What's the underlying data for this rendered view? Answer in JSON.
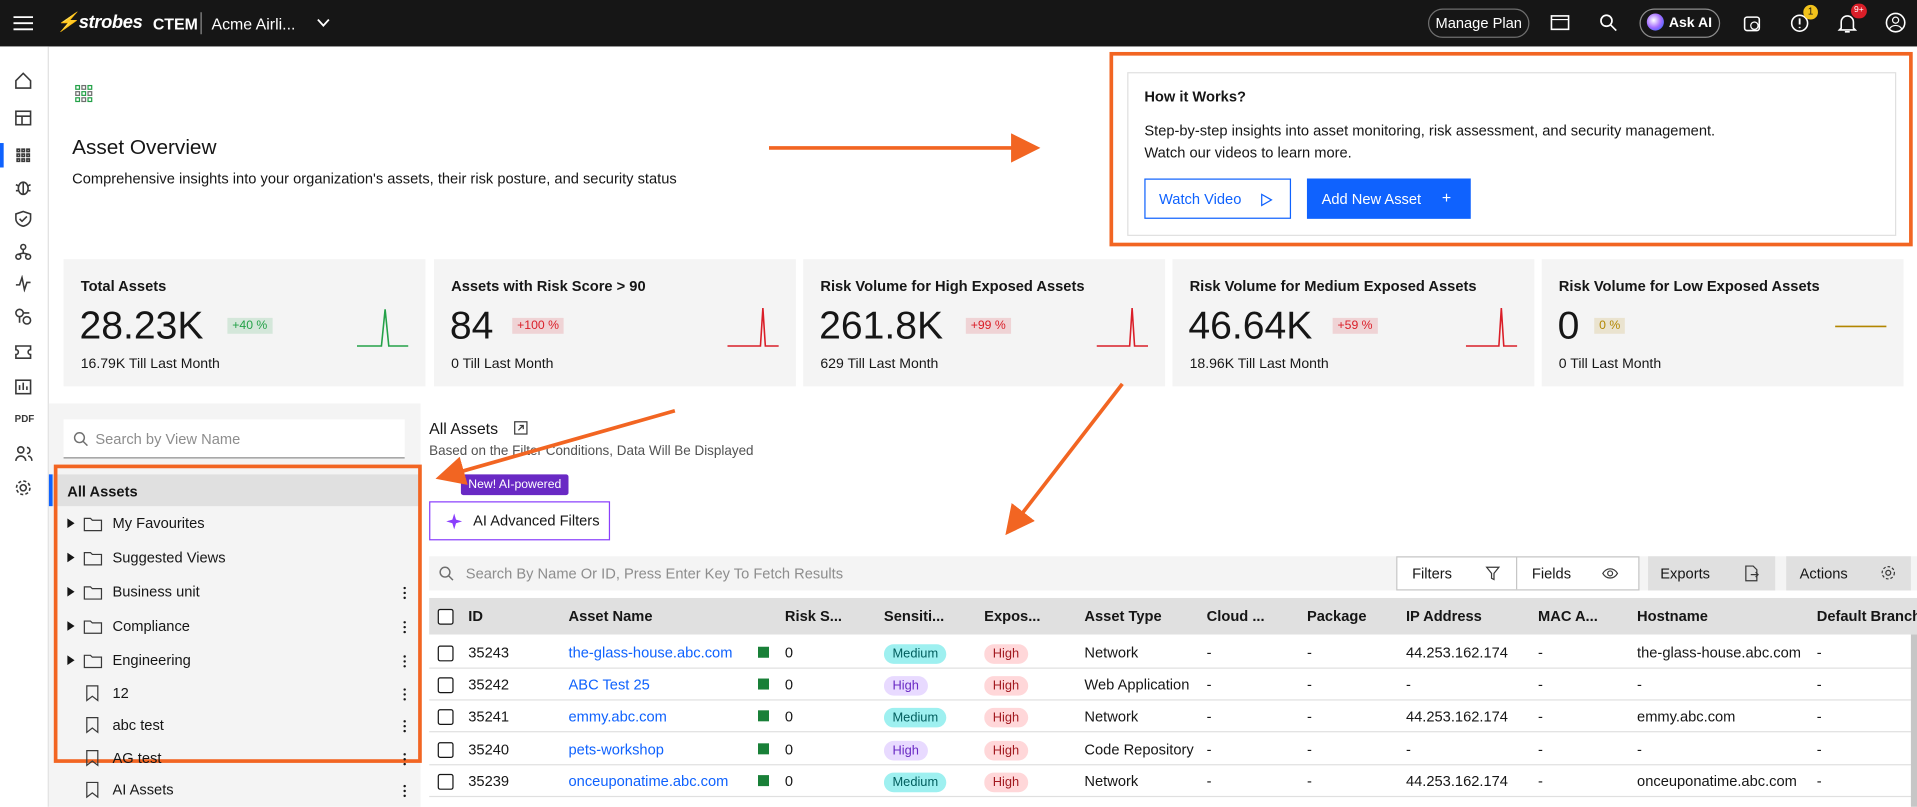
{
  "topbar": {
    "brand": "strobes",
    "product": "CTEM",
    "org": "Acme Airli...",
    "manage_plan": "Manage Plan",
    "ask_ai": "Ask AI",
    "alerts_badge": "1",
    "notifications_badge": "9+"
  },
  "sidebar": {
    "pdf": "PDF"
  },
  "header": {
    "title": "Asset Overview",
    "subtitle": "Comprehensive insights into your organization's assets, their risk posture, and security status"
  },
  "how_it_works": {
    "title": "How it Works?",
    "lines": [
      "Step-by-step insights into asset monitoring, risk assessment, and security management.",
      "Watch our videos to learn more."
    ],
    "watch_video": "Watch Video",
    "add_asset": "Add New Asset",
    "add_icon": "+"
  },
  "cards": [
    {
      "title": "Total Assets",
      "value": "28.23K",
      "change": "+40 %",
      "footer": "16.79K Till Last Month",
      "color": "#24a148"
    },
    {
      "title": "Assets with Risk Score > 90",
      "value": "84",
      "change": "+100 %",
      "footer": "0 Till Last Month",
      "color": "#da1e28"
    },
    {
      "title": "Risk Volume for High Exposed Assets",
      "value": "261.8K",
      "change": "+99 %",
      "footer": "629 Till Last Month",
      "color": "#da1e28"
    },
    {
      "title": "Risk Volume for Medium Exposed Assets",
      "value": "46.64K",
      "change": "+59 %",
      "footer": "18.96K Till Last Month",
      "color": "#da1e28"
    },
    {
      "title": "Risk Volume for Low Exposed Assets",
      "value": "0",
      "change": "0 %",
      "footer": "0 Till Last Month",
      "color": "#b28600"
    }
  ],
  "views": {
    "search_placeholder": "Search by View Name",
    "root": "All Assets",
    "folders": [
      "My Favourites",
      "Suggested Views",
      "Business unit",
      "Compliance",
      "Engineering"
    ],
    "saved": [
      "12",
      "abc test",
      "AG test",
      "AI Assets"
    ]
  },
  "assets": {
    "title": "All Assets",
    "note": "Based on the Filter Conditions, Data Will Be Displayed",
    "badge": "New! AI-powered",
    "ai_filters": "AI Advanced Filters",
    "search_placeholder": "Search By Name Or ID, Press Enter Key To Fetch Results",
    "filters": "Filters",
    "fields": "Fields",
    "exports": "Exports",
    "actions": "Actions",
    "columns": [
      "ID",
      "Asset Name",
      "Risk S...",
      "Sensiti...",
      "Expos...",
      "Asset Type",
      "Cloud ...",
      "Package",
      "IP Address",
      "MAC A...",
      "Hostname",
      "Default Branch"
    ],
    "rows": [
      {
        "id": "35243",
        "name": "the-glass-house.abc.com",
        "risk": "0",
        "sensitivity": {
          "text": "Medium",
          "bg": "#9ef0f0",
          "fg": "#005d5d"
        },
        "exposure": {
          "text": "High",
          "bg": "#ffd7d9",
          "fg": "#a2191f"
        },
        "type": "Network",
        "cloud": "-",
        "package": "-",
        "ip": "44.253.162.174",
        "mac": "-",
        "hostname": "the-glass-house.abc.com",
        "branch": "-"
      },
      {
        "id": "35242",
        "name": "ABC Test 25",
        "risk": "0",
        "sensitivity": {
          "text": "High",
          "bg": "#e8daff",
          "fg": "#6929c4"
        },
        "exposure": {
          "text": "High",
          "bg": "#ffd7d9",
          "fg": "#a2191f"
        },
        "type": "Web Application",
        "cloud": "-",
        "package": "-",
        "ip": "-",
        "mac": "-",
        "hostname": "-",
        "branch": "-"
      },
      {
        "id": "35241",
        "name": "emmy.abc.com",
        "risk": "0",
        "sensitivity": {
          "text": "Medium",
          "bg": "#9ef0f0",
          "fg": "#005d5d"
        },
        "exposure": {
          "text": "High",
          "bg": "#ffd7d9",
          "fg": "#a2191f"
        },
        "type": "Network",
        "cloud": "-",
        "package": "-",
        "ip": "44.253.162.174",
        "mac": "-",
        "hostname": "emmy.abc.com",
        "branch": "-"
      },
      {
        "id": "35240",
        "name": "pets-workshop",
        "risk": "0",
        "sensitivity": {
          "text": "High",
          "bg": "#e8daff",
          "fg": "#6929c4"
        },
        "exposure": {
          "text": "High",
          "bg": "#ffd7d9",
          "fg": "#a2191f"
        },
        "type": "Code Repository",
        "cloud": "-",
        "package": "-",
        "ip": "-",
        "mac": "-",
        "hostname": "-",
        "branch": "-"
      },
      {
        "id": "35239",
        "name": "onceuponatime.abc.com",
        "risk": "0",
        "sensitivity": {
          "text": "Medium",
          "bg": "#9ef0f0",
          "fg": "#005d5d"
        },
        "exposure": {
          "text": "High",
          "bg": "#ffd7d9",
          "fg": "#a2191f"
        },
        "type": "Network",
        "cloud": "-",
        "package": "-",
        "ip": "44.253.162.174",
        "mac": "-",
        "hostname": "onceuponatime.abc.com",
        "branch": "-"
      }
    ]
  }
}
